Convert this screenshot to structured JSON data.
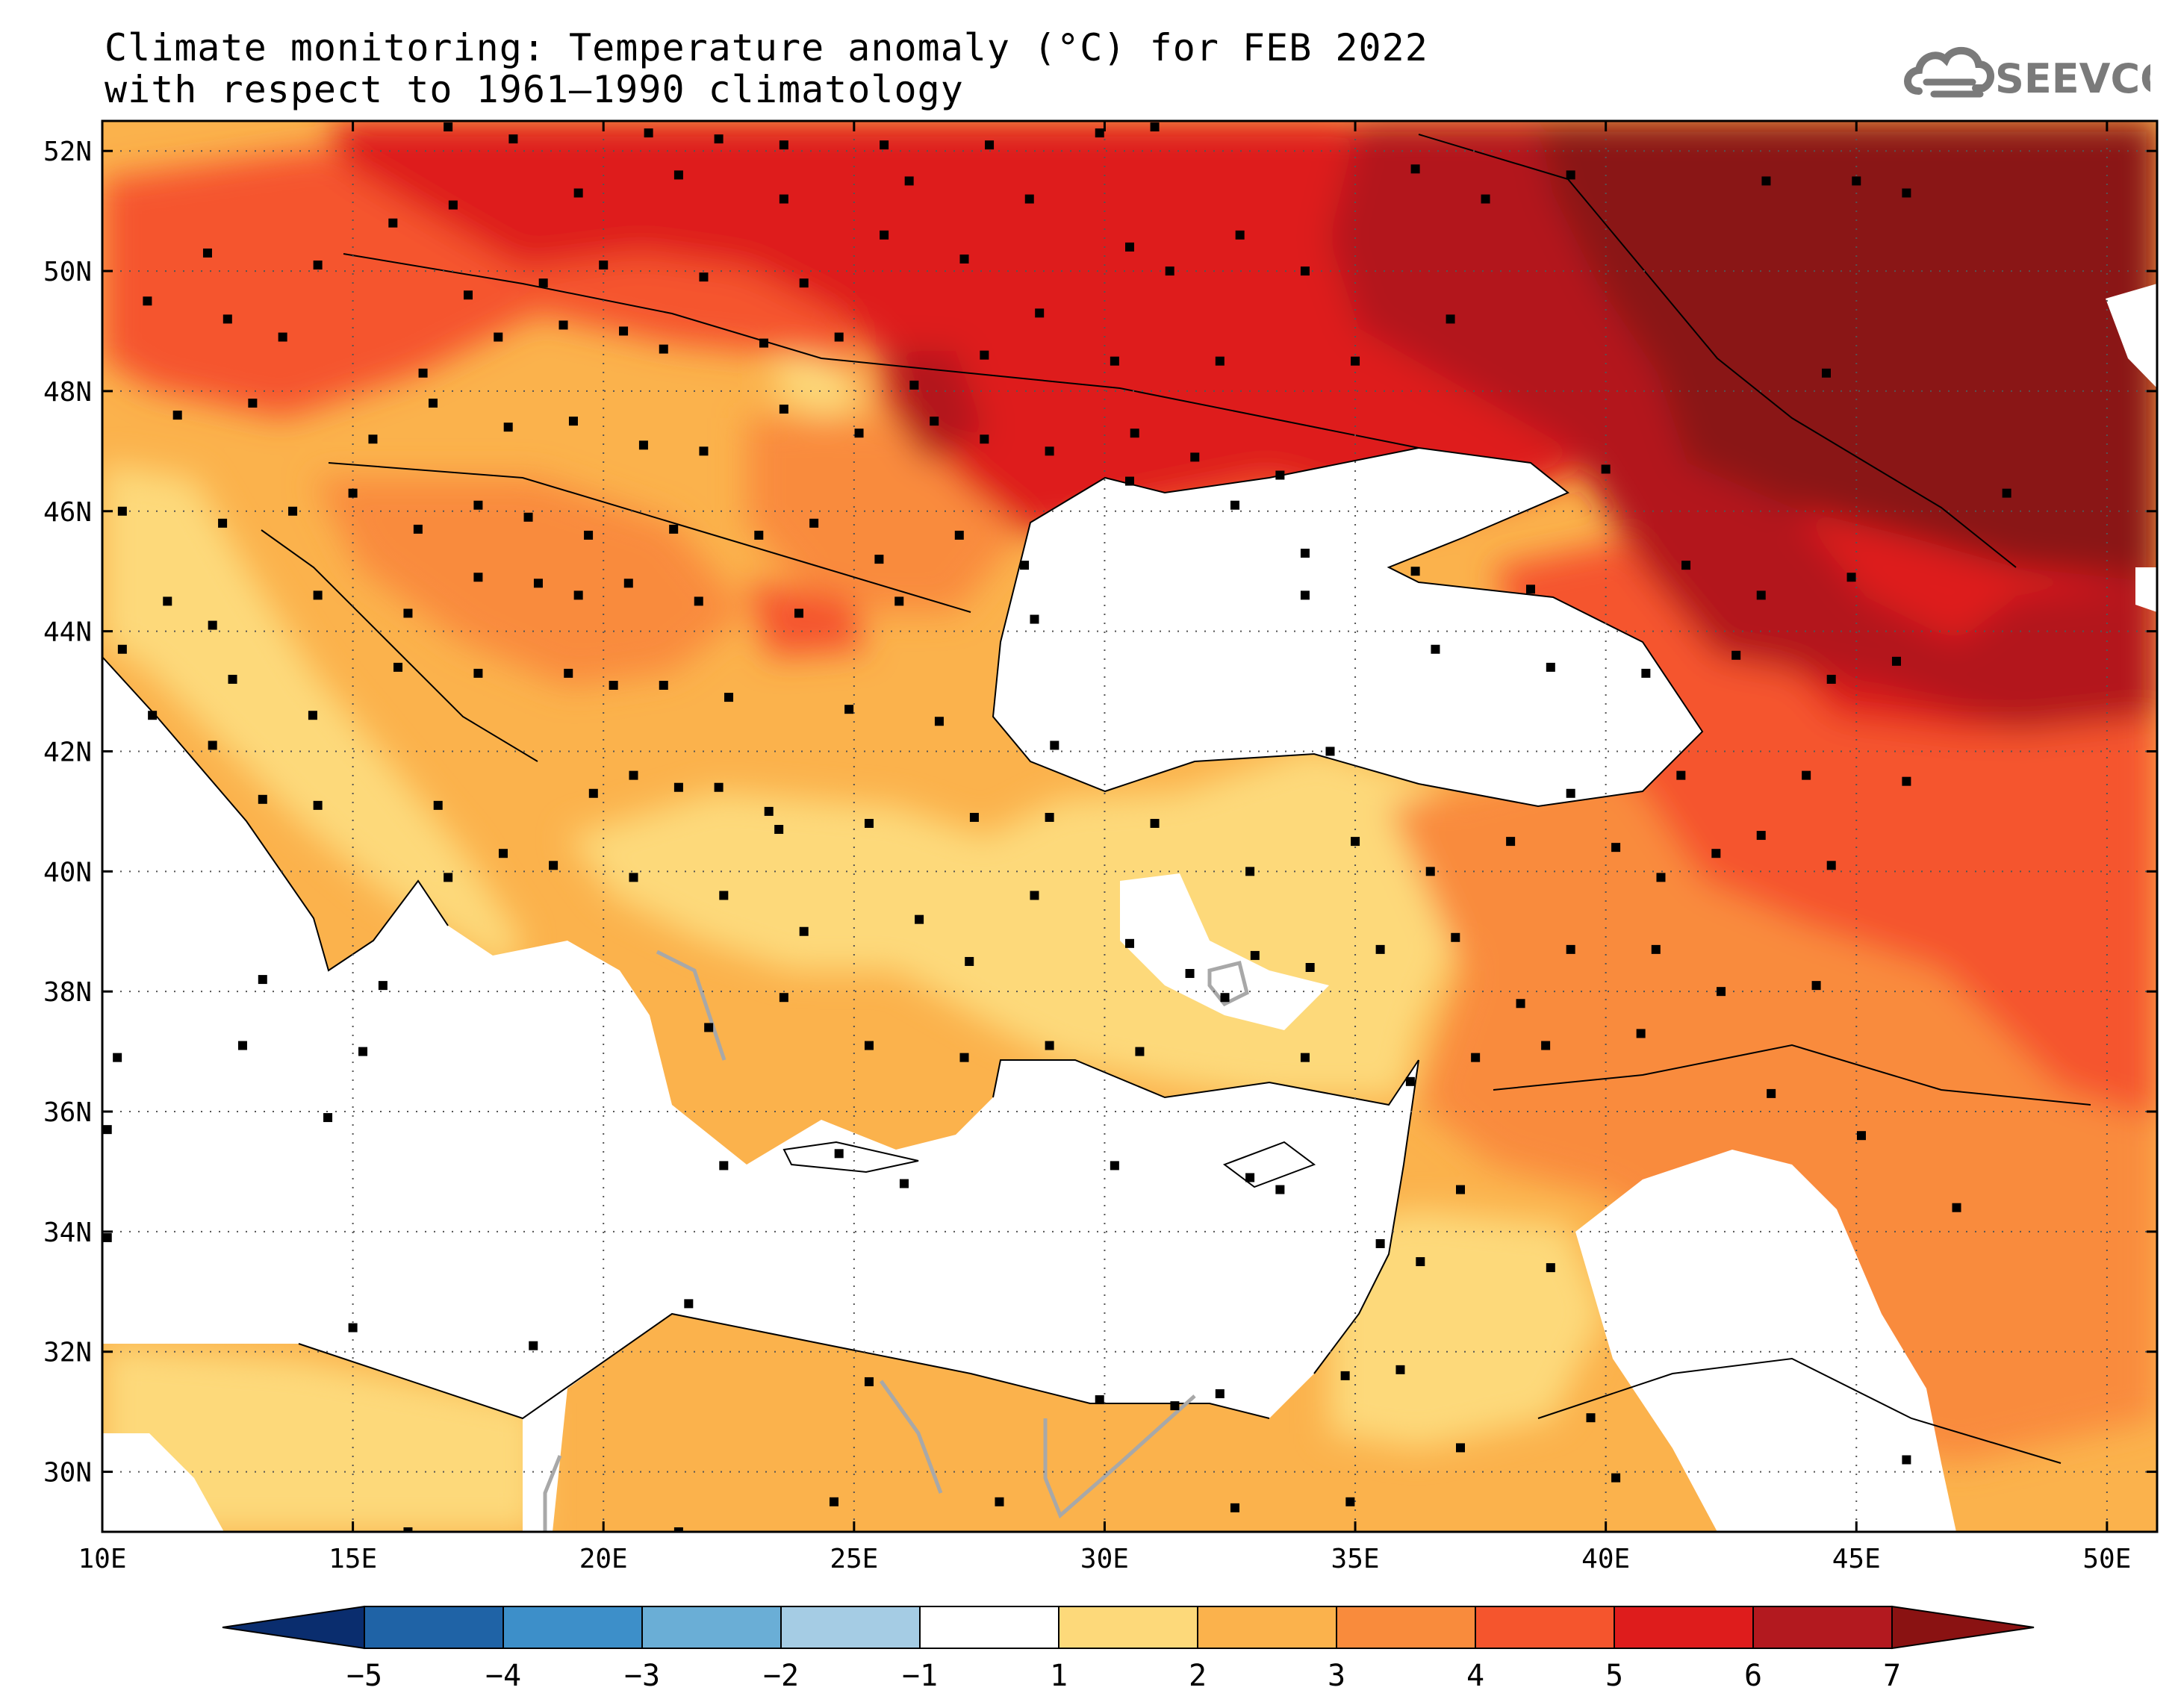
{
  "title": {
    "line1": "Climate monitoring: Temperature anomaly (°C) for FEB 2022",
    "line2": "with respect to 1961–1990 climatology"
  },
  "logo": {
    "text": "SEEVCCC",
    "icon": "cloud-logo-icon",
    "color": "#7a7a7a"
  },
  "map": {
    "lon_range": [
      10,
      51
    ],
    "lat_range": [
      29,
      52.5
    ],
    "lon_ticks": [
      {
        "value": 10,
        "label": "10E"
      },
      {
        "value": 15,
        "label": "15E"
      },
      {
        "value": 20,
        "label": "20E"
      },
      {
        "value": 25,
        "label": "25E"
      },
      {
        "value": 30,
        "label": "30E"
      },
      {
        "value": 35,
        "label": "35E"
      },
      {
        "value": 40,
        "label": "40E"
      },
      {
        "value": 45,
        "label": "45E"
      },
      {
        "value": 50,
        "label": "50E"
      }
    ],
    "lat_ticks": [
      {
        "value": 52,
        "label": "52N"
      },
      {
        "value": 50,
        "label": "50N"
      },
      {
        "value": 48,
        "label": "48N"
      },
      {
        "value": 46,
        "label": "46N"
      },
      {
        "value": 44,
        "label": "44N"
      },
      {
        "value": 42,
        "label": "42N"
      },
      {
        "value": 40,
        "label": "40N"
      },
      {
        "value": 38,
        "label": "38N"
      },
      {
        "value": 36,
        "label": "36N"
      },
      {
        "value": 34,
        "label": "34N"
      },
      {
        "value": 32,
        "label": "32N"
      },
      {
        "value": 30,
        "label": "30N"
      }
    ],
    "grid": "dotted"
  },
  "colorbar": {
    "labels": [
      "−5",
      "−4",
      "−3",
      "−2",
      "−1",
      "1",
      "2",
      "3",
      "4",
      "5",
      "6",
      "7"
    ],
    "colors": [
      "#0a2d6e",
      "#1f63a6",
      "#3d8fc9",
      "#6aaed6",
      "#a5cce4",
      "#ffffff",
      "#fdd97a",
      "#fbb24c",
      "#f98b3c",
      "#f5552d",
      "#de1c1c",
      "#b3191f",
      "#8a1212"
    ]
  },
  "stations": [
    [
      16.9,
      52.4
    ],
    [
      18.2,
      52.2
    ],
    [
      20.9,
      52.3
    ],
    [
      22.3,
      52.2
    ],
    [
      23.6,
      52.1
    ],
    [
      25.6,
      52.1
    ],
    [
      27.7,
      52.1
    ],
    [
      29.9,
      52.3
    ],
    [
      31.0,
      52.4
    ],
    [
      17.0,
      51.1
    ],
    [
      19.5,
      51.3
    ],
    [
      21.5,
      51.6
    ],
    [
      23.6,
      51.2
    ],
    [
      26.1,
      51.5
    ],
    [
      28.5,
      51.2
    ],
    [
      30.5,
      50.4
    ],
    [
      32.7,
      50.6
    ],
    [
      36.2,
      51.7
    ],
    [
      37.6,
      51.2
    ],
    [
      39.3,
      51.6
    ],
    [
      43.2,
      51.5
    ],
    [
      45.0,
      51.5
    ],
    [
      46.0,
      51.3
    ],
    [
      12.1,
      50.3
    ],
    [
      14.3,
      50.1
    ],
    [
      15.8,
      50.8
    ],
    [
      17.3,
      49.6
    ],
    [
      18.8,
      49.8
    ],
    [
      20.0,
      50.1
    ],
    [
      22.0,
      49.9
    ],
    [
      24.0,
      49.8
    ],
    [
      25.6,
      50.6
    ],
    [
      27.2,
      50.2
    ],
    [
      28.7,
      49.3
    ],
    [
      31.3,
      50.0
    ],
    [
      34.0,
      50.0
    ],
    [
      36.9,
      49.2
    ],
    [
      10.9,
      49.5
    ],
    [
      12.5,
      49.2
    ],
    [
      13.6,
      48.9
    ],
    [
      16.4,
      48.3
    ],
    [
      17.9,
      48.9
    ],
    [
      19.2,
      49.1
    ],
    [
      20.4,
      49.0
    ],
    [
      21.2,
      48.7
    ],
    [
      23.2,
      48.8
    ],
    [
      24.7,
      48.9
    ],
    [
      26.2,
      48.1
    ],
    [
      27.6,
      48.6
    ],
    [
      30.2,
      48.5
    ],
    [
      32.3,
      48.5
    ],
    [
      35.0,
      48.5
    ],
    [
      44.4,
      48.3
    ],
    [
      11.5,
      47.6
    ],
    [
      13.0,
      47.8
    ],
    [
      15.4,
      47.2
    ],
    [
      16.6,
      47.8
    ],
    [
      18.1,
      47.4
    ],
    [
      19.4,
      47.5
    ],
    [
      20.8,
      47.1
    ],
    [
      22.0,
      47.0
    ],
    [
      23.6,
      47.7
    ],
    [
      25.1,
      47.3
    ],
    [
      26.6,
      47.5
    ],
    [
      27.6,
      47.2
    ],
    [
      28.9,
      47.0
    ],
    [
      30.6,
      47.3
    ],
    [
      31.8,
      46.9
    ],
    [
      33.5,
      46.6
    ],
    [
      40.0,
      46.7
    ],
    [
      48.0,
      46.3
    ],
    [
      10.4,
      46.0
    ],
    [
      12.4,
      45.8
    ],
    [
      13.8,
      46.0
    ],
    [
      15.0,
      46.3
    ],
    [
      16.3,
      45.7
    ],
    [
      17.5,
      46.1
    ],
    [
      18.5,
      45.9
    ],
    [
      19.7,
      45.6
    ],
    [
      21.4,
      45.7
    ],
    [
      23.1,
      45.6
    ],
    [
      24.2,
      45.8
    ],
    [
      25.5,
      45.2
    ],
    [
      27.1,
      45.6
    ],
    [
      28.4,
      45.1
    ],
    [
      30.5,
      46.5
    ],
    [
      32.6,
      46.1
    ],
    [
      34.0,
      45.3
    ],
    [
      36.2,
      45.0
    ],
    [
      38.5,
      44.7
    ],
    [
      41.6,
      45.1
    ],
    [
      43.1,
      44.6
    ],
    [
      44.9,
      44.9
    ],
    [
      11.3,
      44.5
    ],
    [
      12.2,
      44.1
    ],
    [
      14.3,
      44.6
    ],
    [
      16.1,
      44.3
    ],
    [
      17.5,
      44.9
    ],
    [
      18.7,
      44.8
    ],
    [
      19.5,
      44.6
    ],
    [
      20.5,
      44.8
    ],
    [
      21.9,
      44.5
    ],
    [
      23.9,
      44.3
    ],
    [
      25.9,
      44.5
    ],
    [
      28.6,
      44.2
    ],
    [
      34.0,
      44.6
    ],
    [
      36.6,
      43.7
    ],
    [
      38.9,
      43.4
    ],
    [
      40.8,
      43.3
    ],
    [
      42.6,
      43.6
    ],
    [
      44.5,
      43.2
    ],
    [
      45.8,
      43.5
    ],
    [
      10.4,
      43.7
    ],
    [
      12.6,
      43.2
    ],
    [
      14.2,
      42.6
    ],
    [
      15.9,
      43.4
    ],
    [
      17.5,
      43.3
    ],
    [
      19.3,
      43.3
    ],
    [
      20.2,
      43.1
    ],
    [
      21.2,
      43.1
    ],
    [
      22.5,
      42.9
    ],
    [
      24.9,
      42.7
    ],
    [
      26.7,
      42.5
    ],
    [
      29.0,
      42.1
    ],
    [
      34.5,
      42.0
    ],
    [
      39.3,
      41.3
    ],
    [
      41.5,
      41.6
    ],
    [
      44.0,
      41.6
    ],
    [
      46.0,
      41.5
    ],
    [
      11.0,
      42.6
    ],
    [
      12.2,
      42.1
    ],
    [
      13.2,
      41.2
    ],
    [
      14.3,
      41.1
    ],
    [
      16.7,
      41.1
    ],
    [
      18.0,
      40.3
    ],
    [
      19.8,
      41.3
    ],
    [
      20.6,
      41.6
    ],
    [
      21.5,
      41.4
    ],
    [
      22.3,
      41.4
    ],
    [
      23.3,
      41.0
    ],
    [
      23.5,
      40.7
    ],
    [
      25.3,
      40.8
    ],
    [
      27.4,
      40.9
    ],
    [
      28.9,
      40.9
    ],
    [
      31.0,
      40.8
    ],
    [
      32.9,
      40.0
    ],
    [
      35.0,
      40.5
    ],
    [
      36.5,
      40.0
    ],
    [
      38.1,
      40.5
    ],
    [
      40.2,
      40.4
    ],
    [
      41.1,
      39.9
    ],
    [
      42.2,
      40.3
    ],
    [
      43.1,
      40.6
    ],
    [
      44.5,
      40.1
    ],
    [
      13.2,
      38.2
    ],
    [
      15.6,
      38.1
    ],
    [
      16.9,
      39.9
    ],
    [
      19.0,
      40.1
    ],
    [
      20.6,
      39.9
    ],
    [
      22.4,
      39.6
    ],
    [
      24.0,
      39.0
    ],
    [
      26.3,
      39.2
    ],
    [
      27.3,
      38.5
    ],
    [
      28.6,
      39.6
    ],
    [
      30.5,
      38.8
    ],
    [
      31.7,
      38.3
    ],
    [
      33.0,
      38.6
    ],
    [
      34.1,
      38.4
    ],
    [
      35.5,
      38.7
    ],
    [
      37.0,
      38.9
    ],
    [
      38.3,
      37.8
    ],
    [
      39.3,
      38.7
    ],
    [
      41.0,
      38.7
    ],
    [
      42.3,
      38.0
    ],
    [
      44.2,
      38.1
    ],
    [
      10.3,
      36.9
    ],
    [
      12.8,
      37.1
    ],
    [
      15.2,
      37.0
    ],
    [
      22.1,
      37.4
    ],
    [
      23.6,
      37.9
    ],
    [
      25.3,
      37.1
    ],
    [
      27.2,
      36.9
    ],
    [
      28.9,
      37.1
    ],
    [
      30.7,
      37.0
    ],
    [
      32.4,
      37.9
    ],
    [
      34.0,
      36.9
    ],
    [
      36.1,
      36.5
    ],
    [
      37.4,
      36.9
    ],
    [
      38.8,
      37.1
    ],
    [
      40.7,
      37.3
    ],
    [
      43.3,
      36.3
    ],
    [
      45.1,
      35.6
    ],
    [
      47.0,
      34.4
    ],
    [
      10.1,
      35.7
    ],
    [
      14.5,
      35.9
    ],
    [
      22.4,
      35.1
    ],
    [
      24.7,
      35.3
    ],
    [
      26.0,
      34.8
    ],
    [
      30.2,
      35.1
    ],
    [
      32.9,
      34.9
    ],
    [
      33.5,
      34.7
    ],
    [
      35.5,
      33.8
    ],
    [
      36.3,
      33.5
    ],
    [
      37.1,
      34.7
    ],
    [
      38.9,
      33.4
    ],
    [
      10.1,
      33.9
    ],
    [
      15.0,
      32.4
    ],
    [
      18.6,
      32.1
    ],
    [
      21.7,
      32.8
    ],
    [
      25.3,
      31.5
    ],
    [
      29.9,
      31.2
    ],
    [
      31.4,
      31.1
    ],
    [
      32.3,
      31.3
    ],
    [
      34.8,
      31.6
    ],
    [
      35.9,
      31.7
    ],
    [
      37.1,
      30.4
    ],
    [
      39.7,
      30.9
    ],
    [
      16.1,
      29.0
    ],
    [
      21.5,
      29.0
    ],
    [
      24.6,
      29.5
    ],
    [
      27.9,
      29.5
    ],
    [
      32.6,
      29.4
    ],
    [
      34.9,
      29.5
    ],
    [
      40.2,
      29.9
    ],
    [
      46.0,
      30.2
    ]
  ]
}
